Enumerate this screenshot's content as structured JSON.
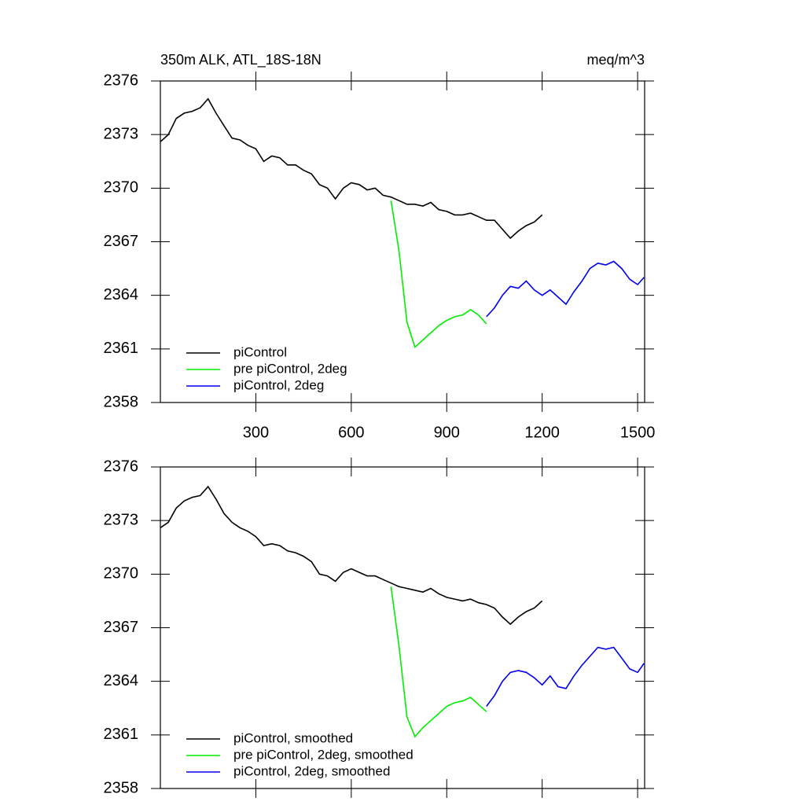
{
  "chart_data": [
    {
      "type": "line",
      "title": "350m ALK, ATL_18S-18N",
      "units_label": "meq/m^3",
      "x": [
        0,
        25,
        50,
        75,
        100,
        125,
        150,
        175,
        200,
        225,
        250,
        275,
        300,
        325,
        350,
        375,
        400,
        425,
        450,
        475,
        500,
        525,
        550,
        575,
        600,
        625,
        650,
        675,
        700,
        725,
        750,
        775,
        800,
        825,
        850,
        875,
        900,
        925,
        950,
        975,
        1000,
        1025,
        1050,
        1075,
        1100,
        1125,
        1150,
        1175,
        1200,
        1225,
        1250,
        1275,
        1300,
        1325,
        1350,
        1375,
        1400,
        1425,
        1450,
        1475,
        1500,
        1520
      ],
      "series": [
        {
          "name": "piControl",
          "color": "#000000",
          "values": [
            2372.6,
            2373.0,
            2373.9,
            2374.2,
            2374.3,
            2374.5,
            2375.0,
            2374.2,
            2373.5,
            2372.8,
            2372.7,
            2372.4,
            2372.2,
            2371.5,
            2371.8,
            2371.7,
            2371.3,
            2371.3,
            2371.0,
            2370.8,
            2370.2,
            2370.0,
            2369.4,
            2370.0,
            2370.3,
            2370.2,
            2369.9,
            2370.0,
            2369.6,
            2369.5,
            2369.3,
            2369.1,
            2369.1,
            2369.0,
            2369.2,
            2368.8,
            2368.7,
            2368.5,
            2368.5,
            2368.6,
            2368.4,
            2368.2,
            2368.2,
            2367.7,
            2367.2,
            2367.6,
            2367.9,
            2368.1,
            2368.5,
            null,
            null,
            null,
            null,
            null,
            null,
            null,
            null,
            null,
            null,
            null,
            null,
            null
          ]
        },
        {
          "name": "pre piControl, 2deg",
          "color": "#00ee00",
          "values": [
            null,
            null,
            null,
            null,
            null,
            null,
            null,
            null,
            null,
            null,
            null,
            null,
            null,
            null,
            null,
            null,
            null,
            null,
            null,
            null,
            null,
            null,
            null,
            null,
            null,
            null,
            null,
            null,
            null,
            2369.3,
            2366.5,
            2362.5,
            2361.1,
            2361.5,
            2361.9,
            2362.3,
            2362.6,
            2362.8,
            2362.9,
            2363.2,
            2362.9,
            2362.4,
            null,
            null,
            null,
            null,
            null,
            null,
            null,
            null,
            null,
            null,
            null,
            null,
            null,
            null,
            null,
            null,
            null,
            null,
            null,
            null
          ]
        },
        {
          "name": "piControl, 2deg",
          "color": "#0000ee",
          "values": [
            null,
            null,
            null,
            null,
            null,
            null,
            null,
            null,
            null,
            null,
            null,
            null,
            null,
            null,
            null,
            null,
            null,
            null,
            null,
            null,
            null,
            null,
            null,
            null,
            null,
            null,
            null,
            null,
            null,
            null,
            null,
            null,
            null,
            null,
            null,
            null,
            null,
            null,
            null,
            null,
            null,
            2362.8,
            2363.3,
            2364.0,
            2364.5,
            2364.4,
            2364.8,
            2364.3,
            2364.0,
            2364.3,
            2363.9,
            2363.5,
            2364.2,
            2364.8,
            2365.5,
            2365.8,
            2365.7,
            2365.9,
            2365.5,
            2364.9,
            2364.6,
            2365.0
          ]
        }
      ],
      "xlim": [
        0,
        1522
      ],
      "xticks": [
        300,
        600,
        900,
        1200,
        1500
      ],
      "show_xtick_labels": true,
      "ylim": [
        2358,
        2376
      ],
      "yticks": [
        2358,
        2361,
        2364,
        2367,
        2370,
        2373,
        2376
      ],
      "legend": "lower left"
    },
    {
      "type": "line",
      "x": [
        0,
        25,
        50,
        75,
        100,
        125,
        150,
        175,
        200,
        225,
        250,
        275,
        300,
        325,
        350,
        375,
        400,
        425,
        450,
        475,
        500,
        525,
        550,
        575,
        600,
        625,
        650,
        675,
        700,
        725,
        750,
        775,
        800,
        825,
        850,
        875,
        900,
        925,
        950,
        975,
        1000,
        1025,
        1050,
        1075,
        1100,
        1125,
        1150,
        1175,
        1200,
        1225,
        1250,
        1275,
        1300,
        1325,
        1350,
        1375,
        1400,
        1425,
        1450,
        1475,
        1500,
        1520
      ],
      "series": [
        {
          "name": "piControl, smoothed",
          "color": "#000000",
          "values": [
            2372.6,
            2372.9,
            2373.7,
            2374.1,
            2374.3,
            2374.4,
            2374.9,
            2374.2,
            2373.4,
            2372.9,
            2372.6,
            2372.4,
            2372.1,
            2371.6,
            2371.7,
            2371.6,
            2371.3,
            2371.2,
            2371.0,
            2370.7,
            2370.0,
            2369.9,
            2369.6,
            2370.1,
            2370.3,
            2370.1,
            2369.9,
            2369.9,
            2369.7,
            2369.5,
            2369.3,
            2369.2,
            2369.1,
            2369.0,
            2369.2,
            2368.9,
            2368.7,
            2368.6,
            2368.5,
            2368.6,
            2368.4,
            2368.3,
            2368.1,
            2367.6,
            2367.2,
            2367.6,
            2367.9,
            2368.1,
            2368.5,
            null,
            null,
            null,
            null,
            null,
            null,
            null,
            null,
            null,
            null,
            null,
            null,
            null
          ]
        },
        {
          "name": "pre piControl, 2deg, smoothed",
          "color": "#00ee00",
          "values": [
            null,
            null,
            null,
            null,
            null,
            null,
            null,
            null,
            null,
            null,
            null,
            null,
            null,
            null,
            null,
            null,
            null,
            null,
            null,
            null,
            null,
            null,
            null,
            null,
            null,
            null,
            null,
            null,
            null,
            2369.3,
            2366.0,
            2362.0,
            2360.9,
            2361.4,
            2361.8,
            2362.2,
            2362.6,
            2362.8,
            2362.9,
            2363.1,
            2362.7,
            2362.3,
            null,
            null,
            null,
            null,
            null,
            null,
            null,
            null,
            null,
            null,
            null,
            null,
            null,
            null,
            null,
            null,
            null,
            null,
            null,
            null
          ]
        },
        {
          "name": "piControl, 2deg, smoothed",
          "color": "#0000ee",
          "values": [
            null,
            null,
            null,
            null,
            null,
            null,
            null,
            null,
            null,
            null,
            null,
            null,
            null,
            null,
            null,
            null,
            null,
            null,
            null,
            null,
            null,
            null,
            null,
            null,
            null,
            null,
            null,
            null,
            null,
            null,
            null,
            null,
            null,
            null,
            null,
            null,
            null,
            null,
            null,
            null,
            null,
            2362.6,
            2363.2,
            2364.0,
            2364.5,
            2364.6,
            2364.5,
            2364.2,
            2363.8,
            2364.3,
            2363.7,
            2363.6,
            2364.3,
            2364.9,
            2365.4,
            2365.9,
            2365.8,
            2365.9,
            2365.3,
            2364.7,
            2364.5,
            2365.0
          ]
        }
      ],
      "xlim": [
        0,
        1522
      ],
      "xticks": [
        300,
        600,
        900,
        1200,
        1500
      ],
      "show_xtick_labels": false,
      "ylim": [
        2358,
        2376
      ],
      "yticks": [
        2358,
        2361,
        2364,
        2367,
        2370,
        2373,
        2376
      ],
      "legend": "lower left"
    }
  ]
}
